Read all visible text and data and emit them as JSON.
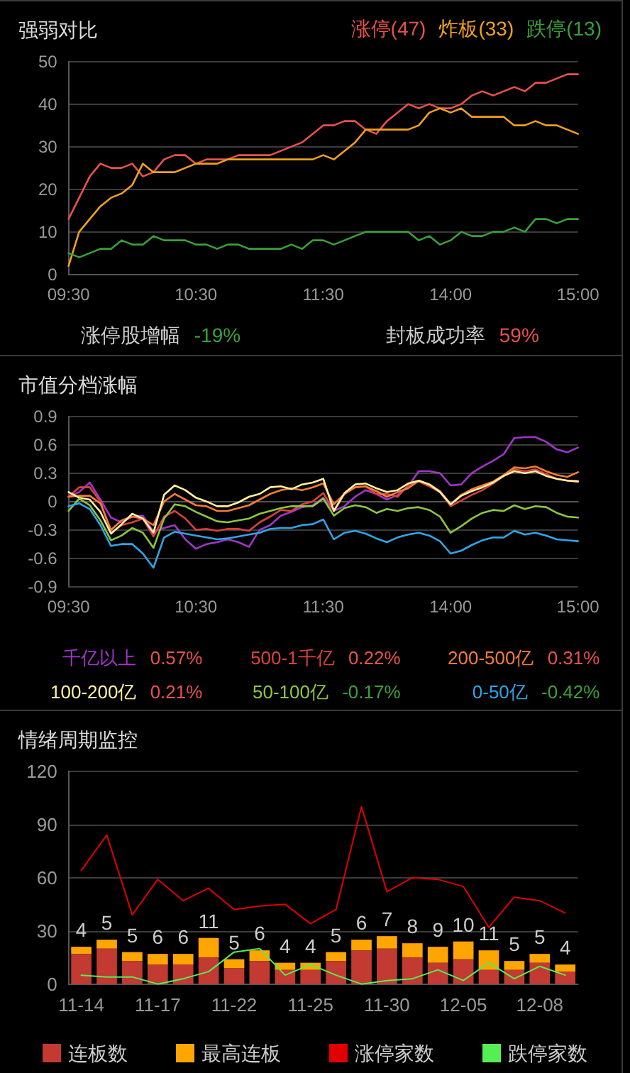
{
  "chart_data": [
    {
      "type": "line",
      "title": "强弱对比",
      "categories": [
        "09:30",
        null,
        null,
        null,
        null,
        null,
        null,
        null,
        null,
        null,
        null,
        null,
        "10:30",
        null,
        null,
        null,
        null,
        null,
        null,
        null,
        null,
        null,
        null,
        null,
        "11:30",
        null,
        null,
        null,
        null,
        null,
        null,
        null,
        null,
        null,
        null,
        null,
        "14:00",
        null,
        null,
        null,
        null,
        null,
        null,
        null,
        null,
        null,
        null,
        null,
        "15:00"
      ],
      "ylim": [
        0,
        50
      ],
      "yticks": [
        0,
        10,
        20,
        30,
        40,
        50
      ],
      "grid": "y",
      "legend": "top right",
      "marker": "none",
      "series": [
        {
          "name": "涨停(47)",
          "color": "#e8524a",
          "values": [
            13,
            18,
            23,
            26,
            25,
            25,
            26,
            23,
            24,
            27,
            28,
            28,
            26,
            27,
            27,
            27,
            28,
            28,
            28,
            28,
            29,
            30,
            31,
            33,
            35,
            35,
            36,
            36,
            34,
            33,
            36,
            38,
            40,
            39,
            40,
            39,
            39,
            40,
            42,
            43,
            42,
            43,
            44,
            43,
            45,
            45,
            46,
            47,
            47
          ]
        },
        {
          "name": "炸板(33)",
          "color": "#f0a020",
          "values": [
            2,
            10,
            13,
            16,
            18,
            19,
            21,
            26,
            24,
            24,
            24,
            25,
            26,
            26,
            26,
            27,
            27,
            27,
            27,
            27,
            27,
            27,
            27,
            27,
            28,
            27,
            29,
            31,
            34,
            34,
            34,
            34,
            34,
            35,
            38,
            39,
            38,
            39,
            37,
            37,
            37,
            37,
            35,
            35,
            36,
            35,
            35,
            34,
            33
          ]
        },
        {
          "name": "跌停(13)",
          "color": "#3aa03a",
          "values": [
            5,
            4,
            5,
            6,
            6,
            8,
            7,
            7,
            9,
            8,
            8,
            8,
            7,
            7,
            6,
            7,
            7,
            6,
            6,
            6,
            6,
            7,
            6,
            8,
            8,
            7,
            8,
            9,
            10,
            10,
            10,
            10,
            10,
            8,
            9,
            7,
            8,
            10,
            9,
            9,
            10,
            10,
            11,
            10,
            13,
            13,
            12,
            13,
            13
          ]
        }
      ],
      "annotations": [
        "涨停股增幅 -19%",
        "封板成功率 59%"
      ]
    },
    {
      "type": "line",
      "title": "市值分档涨幅",
      "categories": [
        "09:30",
        null,
        null,
        null,
        null,
        null,
        null,
        null,
        null,
        null,
        null,
        null,
        "10:30",
        null,
        null,
        null,
        null,
        null,
        null,
        null,
        null,
        null,
        null,
        null,
        "11:30",
        null,
        null,
        null,
        null,
        null,
        null,
        null,
        null,
        null,
        null,
        null,
        "14:00",
        null,
        null,
        null,
        null,
        null,
        null,
        null,
        null,
        null,
        null,
        null,
        "15:00"
      ],
      "ylim": [
        -0.9,
        0.9
      ],
      "yticks": [
        -0.9,
        -0.6,
        -0.3,
        0,
        0.3,
        0.6,
        0.9
      ],
      "grid": "y",
      "legend": "bottom",
      "marker": "none",
      "series": [
        {
          "name": "千亿以上 0.57%",
          "color": "#a335c9",
          "values": [
            0.05,
            0.1,
            0.2,
            0.02,
            -0.17,
            -0.22,
            -0.16,
            -0.15,
            -0.32,
            -0.28,
            -0.25,
            -0.4,
            -0.5,
            -0.45,
            -0.43,
            -0.4,
            -0.43,
            -0.48,
            -0.3,
            -0.25,
            -0.15,
            -0.11,
            -0.06,
            -0.04,
            0.04,
            -0.1,
            -0.05,
            0.05,
            0.12,
            0.08,
            0.02,
            0.07,
            0.16,
            0.32,
            0.32,
            0.3,
            0.17,
            0.18,
            0.3,
            0.37,
            0.43,
            0.5,
            0.67,
            0.68,
            0.68,
            0.63,
            0.55,
            0.52,
            0.57
          ]
        },
        {
          "name": "500-1千亿 0.22%",
          "color": "#d9413c",
          "values": [
            0.05,
            0.15,
            0.15,
            0,
            -0.33,
            -0.25,
            -0.22,
            -0.18,
            -0.37,
            -0.16,
            -0.1,
            -0.18,
            -0.3,
            -0.29,
            -0.31,
            -0.29,
            -0.29,
            -0.31,
            -0.22,
            -0.16,
            -0.09,
            -0.1,
            -0.03,
            0,
            0.09,
            -0.1,
            0.08,
            0.15,
            0.16,
            0.08,
            0.08,
            0.05,
            0.17,
            0.21,
            0.16,
            0.1,
            -0.05,
            0.01,
            0.07,
            0.12,
            0.19,
            0.27,
            0.34,
            0.32,
            0.34,
            0.29,
            0.24,
            0.22,
            0.22
          ]
        },
        {
          "name": "200-500亿 0.31%",
          "color": "#f47a3a",
          "values": [
            0.05,
            0.06,
            0.06,
            -0.02,
            -0.3,
            -0.2,
            -0.16,
            -0.18,
            -0.25,
            0,
            0.08,
            0.02,
            -0.04,
            -0.05,
            -0.1,
            -0.1,
            -0.07,
            -0.04,
            0.02,
            0.08,
            0.12,
            0.14,
            0.12,
            0.15,
            0.19,
            -0.03,
            0.08,
            0.15,
            0.16,
            0.11,
            0.05,
            0.1,
            0.14,
            0.22,
            0.18,
            0.11,
            -0.03,
            0.07,
            0.13,
            0.17,
            0.21,
            0.28,
            0.36,
            0.35,
            0.37,
            0.32,
            0.28,
            0.26,
            0.31
          ]
        },
        {
          "name": "100-200亿 0.21%",
          "color": "#fff0a0",
          "values": [
            0.1,
            0.04,
            0.02,
            -0.11,
            -0.34,
            -0.24,
            -0.13,
            -0.18,
            -0.33,
            0.07,
            0.17,
            0.12,
            0.04,
            0,
            -0.05,
            -0.05,
            -0.01,
            0.05,
            0.08,
            0.15,
            0.16,
            0.13,
            0.18,
            0.2,
            0.24,
            -0.1,
            0.09,
            0.18,
            0.19,
            0.14,
            0.1,
            0.12,
            0.19,
            0.22,
            0.18,
            0.1,
            -0.03,
            0.06,
            0.11,
            0.15,
            0.2,
            0.27,
            0.32,
            0.3,
            0.32,
            0.27,
            0.24,
            0.22,
            0.21
          ]
        },
        {
          "name": "50-100亿 -0.17%",
          "color": "#8dc63f",
          "values": [
            -0.1,
            0.03,
            -0.04,
            -0.2,
            -0.41,
            -0.36,
            -0.28,
            -0.33,
            -0.49,
            -0.18,
            -0.03,
            -0.05,
            -0.11,
            -0.16,
            -0.21,
            -0.22,
            -0.2,
            -0.18,
            -0.13,
            -0.1,
            -0.07,
            -0.05,
            -0.05,
            -0.05,
            0.03,
            -0.15,
            -0.07,
            -0.04,
            -0.06,
            -0.12,
            -0.08,
            -0.1,
            -0.07,
            -0.06,
            -0.09,
            -0.16,
            -0.33,
            -0.26,
            -0.18,
            -0.12,
            -0.09,
            -0.1,
            -0.04,
            -0.08,
            -0.05,
            -0.06,
            -0.12,
            -0.16,
            -0.17
          ]
        },
        {
          "name": "0-50亿 -0.42%",
          "color": "#2ea6e6",
          "values": [
            -0.05,
            -0.02,
            -0.08,
            -0.25,
            -0.47,
            -0.45,
            -0.45,
            -0.55,
            -0.7,
            -0.38,
            -0.32,
            -0.34,
            -0.36,
            -0.38,
            -0.4,
            -0.39,
            -0.37,
            -0.35,
            -0.33,
            -0.29,
            -0.28,
            -0.28,
            -0.25,
            -0.24,
            -0.19,
            -0.4,
            -0.33,
            -0.31,
            -0.34,
            -0.39,
            -0.43,
            -0.38,
            -0.35,
            -0.33,
            -0.36,
            -0.42,
            -0.55,
            -0.52,
            -0.46,
            -0.41,
            -0.38,
            -0.38,
            -0.31,
            -0.35,
            -0.33,
            -0.36,
            -0.4,
            -0.41,
            -0.42
          ]
        }
      ]
    },
    {
      "type": "bar",
      "title": "情绪周期监控",
      "categories": [
        "11-14",
        null,
        null,
        "11-17",
        null,
        null,
        "11-22",
        null,
        null,
        "11-25",
        null,
        null,
        "11-30",
        null,
        null,
        "12-05",
        null,
        null,
        "12-08",
        null
      ],
      "ylim": [
        0,
        120
      ],
      "yticks": [
        0,
        30,
        60,
        90,
        120
      ],
      "grid": "y",
      "legend": "bottom",
      "stacked": true,
      "marker": "none",
      "series": [
        {
          "name": "连板数",
          "color": "#c23a32",
          "values": [
            17,
            20,
            13,
            11,
            11,
            15,
            9,
            13,
            8,
            8,
            13,
            19,
            20,
            15,
            12,
            14,
            8,
            8,
            12,
            7
          ]
        },
        {
          "name": "最高连板",
          "color": "#ffa500",
          "values": [
            4,
            5,
            5,
            6,
            6,
            11,
            5,
            6,
            4,
            4,
            5,
            6,
            7,
            8,
            9,
            10,
            11,
            5,
            5,
            4
          ],
          "value_labels": [
            "4",
            "5",
            "5",
            "6",
            "6",
            "11",
            "5",
            "6",
            "4",
            "4",
            "5",
            "6",
            "7",
            "8",
            "9",
            "10",
            "11",
            "5",
            "5",
            "4"
          ]
        },
        {
          "name": "涨停家数",
          "type": "line",
          "color": "#e00000",
          "values": [
            64,
            84,
            39,
            59,
            47,
            54,
            42,
            44,
            45,
            34,
            42,
            100,
            52,
            60,
            59,
            55,
            32,
            49,
            47,
            40
          ]
        },
        {
          "name": "跌停家数",
          "type": "line",
          "color": "#55ee55",
          "values": [
            5,
            4,
            4,
            0,
            3,
            7,
            18,
            20,
            5,
            11,
            5,
            0,
            2,
            3,
            8,
            2,
            12,
            3,
            10,
            5
          ]
        }
      ]
    }
  ]
}
